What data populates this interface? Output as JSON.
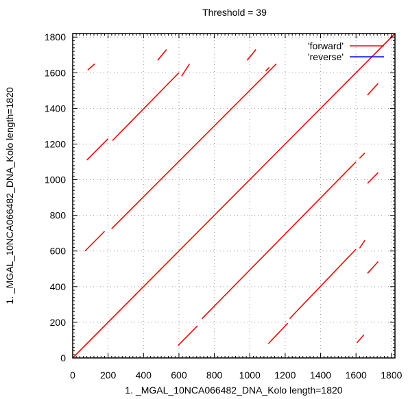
{
  "chart_data": {
    "type": "line",
    "title": "Threshold = 39",
    "xlabel": "1. _MGAL_10NCA066482_DNA_Kolo length=1820",
    "ylabel": "1. _MGAL_10NCA066482_DNA_Kolo length=1820",
    "xlim": [
      0,
      1820
    ],
    "ylim": [
      0,
      1820
    ],
    "xticks": [
      0,
      200,
      400,
      600,
      800,
      1000,
      1200,
      1400,
      1600,
      1800
    ],
    "yticks": [
      0,
      200,
      400,
      600,
      800,
      1000,
      1200,
      1400,
      1600,
      1800
    ],
    "grid": true,
    "legend": "top-right",
    "series": [
      {
        "name": "'forward'",
        "color": "#ff0000",
        "segments": [
          [
            [
              0,
              0
            ],
            [
              1820,
              1820
            ]
          ],
          [
            [
              70,
              600
            ],
            [
              180,
              710
            ]
          ],
          [
            [
              220,
              725
            ],
            [
              1150,
              1650
            ]
          ],
          [
            [
              80,
              1110
            ],
            [
              200,
              1230
            ]
          ],
          [
            [
              225,
              1220
            ],
            [
              600,
              1600
            ]
          ],
          [
            [
              615,
              1580
            ],
            [
              660,
              1650
            ]
          ],
          [
            [
              85,
              1615
            ],
            [
              125,
              1650
            ]
          ],
          [
            [
              480,
              1670
            ],
            [
              530,
              1730
            ]
          ],
          [
            [
              985,
              1670
            ],
            [
              1035,
              1730
            ]
          ],
          [
            [
              1090,
              1610
            ],
            [
              1110,
              1630
            ]
          ],
          [
            [
              595,
              70
            ],
            [
              705,
              180
            ]
          ],
          [
            [
              730,
              220
            ],
            [
              1600,
              1100
            ]
          ],
          [
            [
              1620,
              1120
            ],
            [
              1650,
              1150
            ]
          ],
          [
            [
              1105,
              80
            ],
            [
              1215,
              195
            ]
          ],
          [
            [
              1225,
              220
            ],
            [
              1600,
              610
            ]
          ],
          [
            [
              1620,
              615
            ],
            [
              1650,
              660
            ]
          ],
          [
            [
              1605,
              85
            ],
            [
              1645,
              130
            ]
          ],
          [
            [
              1665,
              475
            ],
            [
              1725,
              540
            ]
          ],
          [
            [
              1665,
              980
            ],
            [
              1725,
              1040
            ]
          ],
          [
            [
              1665,
              1475
            ],
            [
              1725,
              1540
            ]
          ]
        ]
      },
      {
        "name": "'reverse'",
        "color": "#0000ff",
        "segments": []
      }
    ]
  }
}
